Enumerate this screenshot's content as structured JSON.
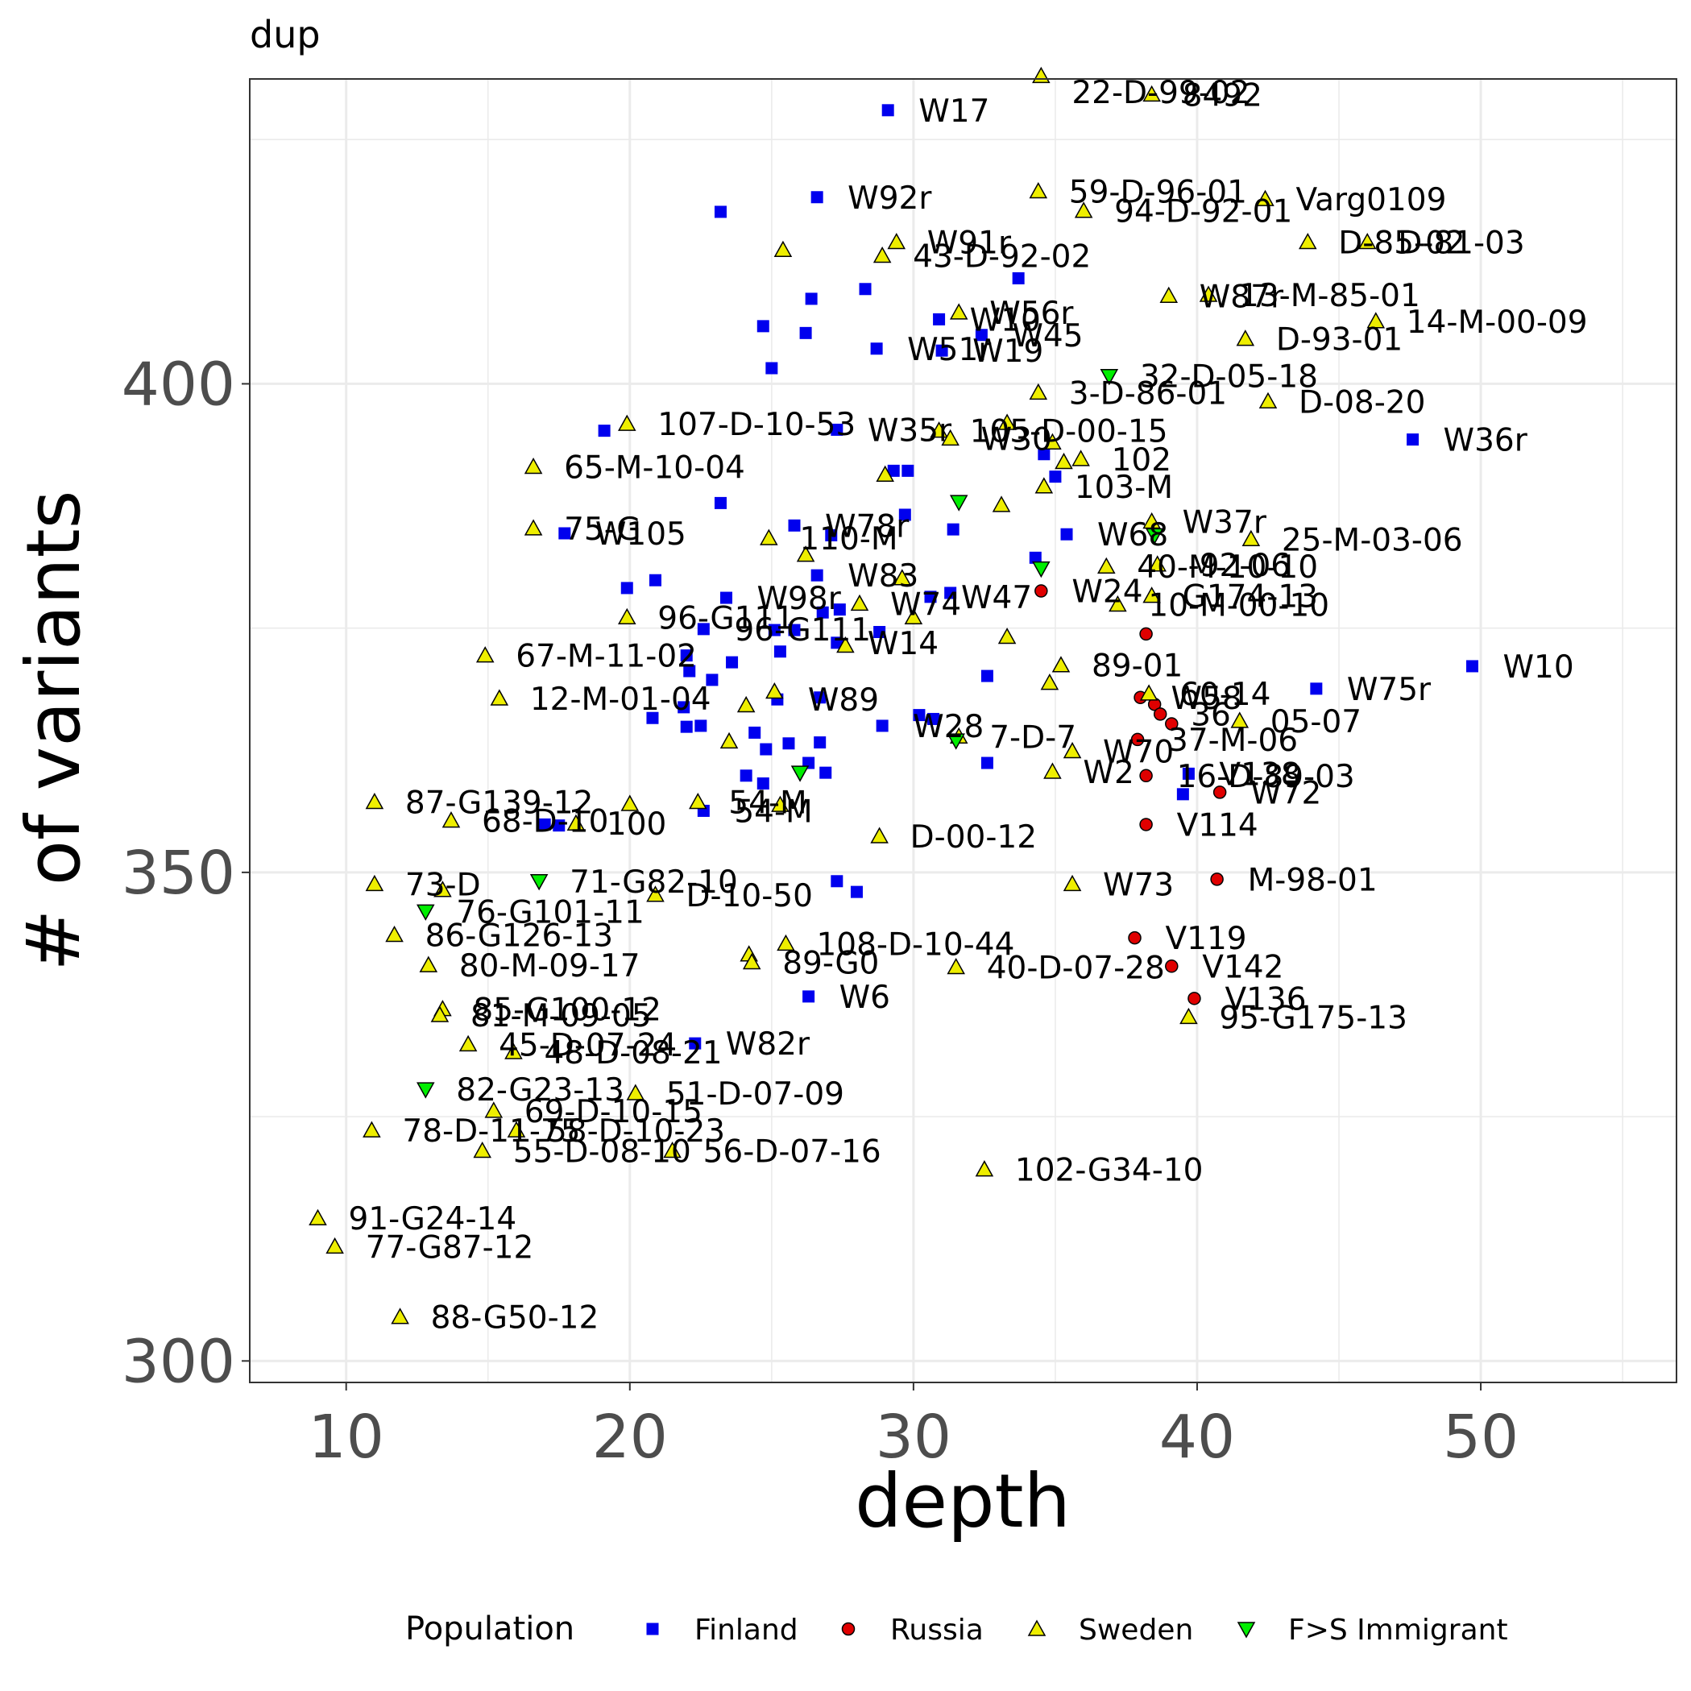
{
  "chart_data": {
    "type": "scatter",
    "title": "dup",
    "xlabel": "depth",
    "ylabel": "# of variants",
    "xlim": [
      6.6,
      56.9
    ],
    "ylim": [
      297.8,
      431.2
    ],
    "x_ticks": [
      10,
      20,
      30,
      40,
      50
    ],
    "y_ticks": [
      300,
      350,
      400
    ],
    "x_tick_labels": [
      "10",
      "20",
      "30",
      "40",
      "50"
    ],
    "y_tick_labels": [
      "300",
      "350",
      "400"
    ],
    "grid": true,
    "legend_position": "bottom",
    "legend_title": "Population",
    "colors": {
      "Finland": "#0000ee",
      "Russia": "#e00000",
      "Sweden": "#eeee00",
      "F>S Immigrant": "#00ee00"
    },
    "series": [
      {
        "name": "Finland",
        "marker": "square",
        "points": [
          {
            "x": 29.1,
            "y": 428.0,
            "label": "W17"
          },
          {
            "x": 26.6,
            "y": 419.1,
            "label": "W92r"
          },
          {
            "x": 23.2,
            "y": 417.6,
            "label": ""
          },
          {
            "x": 33.7,
            "y": 410.8,
            "label": ""
          },
          {
            "x": 28.3,
            "y": 409.7,
            "label": ""
          },
          {
            "x": 26.4,
            "y": 408.7,
            "label": ""
          },
          {
            "x": 30.9,
            "y": 406.6,
            "label": "W10"
          },
          {
            "x": 24.7,
            "y": 405.9,
            "label": ""
          },
          {
            "x": 26.2,
            "y": 405.2,
            "label": ""
          },
          {
            "x": 32.4,
            "y": 405.0,
            "label": "W45"
          },
          {
            "x": 28.7,
            "y": 403.6,
            "label": "W51r"
          },
          {
            "x": 31.0,
            "y": 403.4,
            "label": "W19"
          },
          {
            "x": 25.0,
            "y": 401.6,
            "label": ""
          },
          {
            "x": 19.1,
            "y": 395.2,
            "label": ""
          },
          {
            "x": 27.3,
            "y": 395.3,
            "label": "W35r"
          },
          {
            "x": 47.6,
            "y": 394.3,
            "label": "W36r"
          },
          {
            "x": 34.6,
            "y": 392.8,
            "label": ""
          },
          {
            "x": 35.0,
            "y": 390.5,
            "label": ""
          },
          {
            "x": 29.3,
            "y": 391.1,
            "label": ""
          },
          {
            "x": 29.8,
            "y": 391.1,
            "label": ""
          },
          {
            "x": 23.2,
            "y": 387.8,
            "label": ""
          },
          {
            "x": 17.7,
            "y": 384.7,
            "label": "W105"
          },
          {
            "x": 25.8,
            "y": 385.5,
            "label": "W78r"
          },
          {
            "x": 27.1,
            "y": 384.5,
            "label": ""
          },
          {
            "x": 29.7,
            "y": 386.6,
            "label": ""
          },
          {
            "x": 31.4,
            "y": 385.1,
            "label": ""
          },
          {
            "x": 35.4,
            "y": 384.6,
            "label": "W68"
          },
          {
            "x": 20.9,
            "y": 379.9,
            "label": ""
          },
          {
            "x": 19.9,
            "y": 379.1,
            "label": ""
          },
          {
            "x": 23.4,
            "y": 378.1,
            "label": "W98r"
          },
          {
            "x": 26.6,
            "y": 380.4,
            "label": "W83"
          },
          {
            "x": 30.6,
            "y": 378.2,
            "label": "W47"
          },
          {
            "x": 31.3,
            "y": 378.6,
            "label": ""
          },
          {
            "x": 34.3,
            "y": 382.2,
            "label": ""
          },
          {
            "x": 25.1,
            "y": 374.8,
            "label": ""
          },
          {
            "x": 25.8,
            "y": 374.8,
            "label": ""
          },
          {
            "x": 26.8,
            "y": 376.6,
            "label": ""
          },
          {
            "x": 27.4,
            "y": 376.9,
            "label": ""
          },
          {
            "x": 22.6,
            "y": 374.9,
            "label": "96-G111"
          },
          {
            "x": 22.0,
            "y": 372.2,
            "label": ""
          },
          {
            "x": 23.6,
            "y": 371.5,
            "label": ""
          },
          {
            "x": 25.3,
            "y": 372.6,
            "label": ""
          },
          {
            "x": 27.3,
            "y": 373.5,
            "label": "W14"
          },
          {
            "x": 28.8,
            "y": 374.6,
            "label": ""
          },
          {
            "x": 32.6,
            "y": 370.1,
            "label": ""
          },
          {
            "x": 22.1,
            "y": 370.6,
            "label": ""
          },
          {
            "x": 22.9,
            "y": 369.7,
            "label": ""
          },
          {
            "x": 25.2,
            "y": 367.7,
            "label": "W89"
          },
          {
            "x": 26.7,
            "y": 367.9,
            "label": ""
          },
          {
            "x": 44.2,
            "y": 368.8,
            "label": "W75r"
          },
          {
            "x": 49.7,
            "y": 371.1,
            "label": "W10"
          },
          {
            "x": 21.9,
            "y": 366.9,
            "label": ""
          },
          {
            "x": 20.8,
            "y": 365.8,
            "label": ""
          },
          {
            "x": 22.0,
            "y": 364.9,
            "label": ""
          },
          {
            "x": 22.5,
            "y": 365.0,
            "label": ""
          },
          {
            "x": 24.4,
            "y": 364.3,
            "label": ""
          },
          {
            "x": 24.8,
            "y": 362.6,
            "label": ""
          },
          {
            "x": 25.6,
            "y": 363.2,
            "label": ""
          },
          {
            "x": 26.7,
            "y": 363.3,
            "label": ""
          },
          {
            "x": 28.9,
            "y": 365.0,
            "label": "W28"
          },
          {
            "x": 30.2,
            "y": 366.1,
            "label": ""
          },
          {
            "x": 30.7,
            "y": 365.7,
            "label": ""
          },
          {
            "x": 24.1,
            "y": 359.9,
            "label": ""
          },
          {
            "x": 24.7,
            "y": 359.1,
            "label": ""
          },
          {
            "x": 26.3,
            "y": 361.2,
            "label": ""
          },
          {
            "x": 26.9,
            "y": 360.2,
            "label": ""
          },
          {
            "x": 32.6,
            "y": 361.2,
            "label": ""
          },
          {
            "x": 39.7,
            "y": 360.1,
            "label": "V138"
          },
          {
            "x": 39.5,
            "y": 358.0,
            "label": ""
          },
          {
            "x": 22.6,
            "y": 356.3,
            "label": "54-M"
          },
          {
            "x": 17.0,
            "y": 354.9,
            "label": ""
          },
          {
            "x": 17.5,
            "y": 354.8,
            "label": ""
          },
          {
            "x": 27.3,
            "y": 349.1,
            "label": ""
          },
          {
            "x": 28.0,
            "y": 348.0,
            "label": ""
          },
          {
            "x": 26.3,
            "y": 337.3,
            "label": "W6"
          },
          {
            "x": 22.3,
            "y": 332.5,
            "label": "W82r"
          }
        ]
      },
      {
        "name": "Russia",
        "marker": "circle",
        "points": [
          {
            "x": 34.5,
            "y": 378.8,
            "label": "W24"
          },
          {
            "x": 38.2,
            "y": 374.4,
            "label": ""
          },
          {
            "x": 38.5,
            "y": 367.2,
            "label": ""
          },
          {
            "x": 38.7,
            "y": 366.2,
            "label": "36"
          },
          {
            "x": 39.1,
            "y": 365.2,
            "label": ""
          },
          {
            "x": 38.0,
            "y": 367.9,
            "label": "W58"
          },
          {
            "x": 37.9,
            "y": 363.6,
            "label": "37-M-06"
          },
          {
            "x": 38.2,
            "y": 359.9,
            "label": "16-D-89-03"
          },
          {
            "x": 40.8,
            "y": 358.2,
            "label": "W72"
          },
          {
            "x": 38.2,
            "y": 354.9,
            "label": "V114"
          },
          {
            "x": 40.7,
            "y": 349.3,
            "label": "M-98-01"
          },
          {
            "x": 37.8,
            "y": 343.3,
            "label": "V119"
          },
          {
            "x": 39.1,
            "y": 340.4,
            "label": "V142"
          },
          {
            "x": 39.9,
            "y": 337.1,
            "label": "V136"
          }
        ]
      },
      {
        "name": "Sweden",
        "marker": "triangle-up",
        "points": [
          {
            "x": 34.5,
            "y": 431.5,
            "label": "22-D-99-02"
          },
          {
            "x": 38.4,
            "y": 429.6,
            "label": "8492"
          },
          {
            "x": 34.4,
            "y": 419.7,
            "label": "59-D-96-01"
          },
          {
            "x": 42.4,
            "y": 418.9,
            "label": "Varg0109"
          },
          {
            "x": 36.0,
            "y": 417.7,
            "label": "94-D-92-01"
          },
          {
            "x": 29.4,
            "y": 414.5,
            "label": "W91r"
          },
          {
            "x": 43.9,
            "y": 414.5,
            "label": "D-85-02"
          },
          {
            "x": 46.0,
            "y": 414.5,
            "label": "D-81-03"
          },
          {
            "x": 25.4,
            "y": 413.7,
            "label": ""
          },
          {
            "x": 28.9,
            "y": 413.1,
            "label": "43-D-92-02"
          },
          {
            "x": 39.0,
            "y": 409.0,
            "label": "W87r"
          },
          {
            "x": 40.4,
            "y": 409.1,
            "label": "13-M-85-01"
          },
          {
            "x": 31.6,
            "y": 407.3,
            "label": "W56r"
          },
          {
            "x": 46.3,
            "y": 406.4,
            "label": "14-M-00-09"
          },
          {
            "x": 41.7,
            "y": 404.6,
            "label": "D-93-01"
          },
          {
            "x": 34.4,
            "y": 399.1,
            "label": "3-D-86-01"
          },
          {
            "x": 42.5,
            "y": 398.2,
            "label": "D-08-20"
          },
          {
            "x": 19.9,
            "y": 395.9,
            "label": "107-D-10-53"
          },
          {
            "x": 30.9,
            "y": 395.2,
            "label": "105-D-00-15"
          },
          {
            "x": 31.3,
            "y": 394.4,
            "label": "W30"
          },
          {
            "x": 33.3,
            "y": 396.0,
            "label": ""
          },
          {
            "x": 34.9,
            "y": 394.0,
            "label": ""
          },
          {
            "x": 16.6,
            "y": 391.5,
            "label": "65-M-10-04"
          },
          {
            "x": 35.3,
            "y": 392.0,
            "label": ""
          },
          {
            "x": 35.9,
            "y": 392.3,
            "label": "102"
          },
          {
            "x": 34.6,
            "y": 389.5,
            "label": "103-M"
          },
          {
            "x": 29.0,
            "y": 390.7,
            "label": ""
          },
          {
            "x": 33.1,
            "y": 387.6,
            "label": ""
          },
          {
            "x": 16.6,
            "y": 385.2,
            "label": "75-G"
          },
          {
            "x": 24.9,
            "y": 384.2,
            "label": "110-M"
          },
          {
            "x": 38.4,
            "y": 385.9,
            "label": "W37r"
          },
          {
            "x": 41.9,
            "y": 384.1,
            "label": "25-M-03-06"
          },
          {
            "x": 26.2,
            "y": 382.5,
            "label": ""
          },
          {
            "x": 29.6,
            "y": 380.1,
            "label": ""
          },
          {
            "x": 38.6,
            "y": 381.5,
            "label": "-92-06"
          },
          {
            "x": 36.8,
            "y": 381.3,
            "label": "40-M-10-10"
          },
          {
            "x": 28.1,
            "y": 377.5,
            "label": "W74"
          },
          {
            "x": 38.4,
            "y": 378.3,
            "label": "G174-13"
          },
          {
            "x": 37.2,
            "y": 377.4,
            "label": "10-M-00-10"
          },
          {
            "x": 19.9,
            "y": 376.1,
            "label": "96-G111"
          },
          {
            "x": 30.0,
            "y": 376.1,
            "label": ""
          },
          {
            "x": 33.3,
            "y": 374.1,
            "label": ""
          },
          {
            "x": 14.9,
            "y": 372.2,
            "label": "67-M-11-02"
          },
          {
            "x": 35.2,
            "y": 371.2,
            "label": "89-01"
          },
          {
            "x": 27.6,
            "y": 373.2,
            "label": ""
          },
          {
            "x": 25.1,
            "y": 368.5,
            "label": ""
          },
          {
            "x": 15.4,
            "y": 367.8,
            "label": "12-M-01-04"
          },
          {
            "x": 24.1,
            "y": 367.1,
            "label": ""
          },
          {
            "x": 34.8,
            "y": 369.4,
            "label": ""
          },
          {
            "x": 38.3,
            "y": 368.3,
            "label": "60-14"
          },
          {
            "x": 41.5,
            "y": 365.5,
            "label": "05-07"
          },
          {
            "x": 23.5,
            "y": 363.4,
            "label": ""
          },
          {
            "x": 31.6,
            "y": 363.9,
            "label": "7-D-7"
          },
          {
            "x": 35.6,
            "y": 362.4,
            "label": "W70"
          },
          {
            "x": 34.9,
            "y": 360.3,
            "label": "W2"
          },
          {
            "x": 11.0,
            "y": 357.2,
            "label": "87-G139-12"
          },
          {
            "x": 22.4,
            "y": 357.2,
            "label": "54-M"
          },
          {
            "x": 20.0,
            "y": 357.0,
            "label": ""
          },
          {
            "x": 25.3,
            "y": 356.9,
            "label": ""
          },
          {
            "x": 13.7,
            "y": 355.3,
            "label": "68-D-10"
          },
          {
            "x": 18.1,
            "y": 355.0,
            "label": "100"
          },
          {
            "x": 28.8,
            "y": 353.7,
            "label": "D-00-12"
          },
          {
            "x": 11.0,
            "y": 348.8,
            "label": "73-D"
          },
          {
            "x": 35.6,
            "y": 348.8,
            "label": "W73"
          },
          {
            "x": 13.4,
            "y": 348.2,
            "label": ""
          },
          {
            "x": 20.9,
            "y": 347.7,
            "label": "D-10-50"
          },
          {
            "x": 11.7,
            "y": 343.6,
            "label": "86-G126-13"
          },
          {
            "x": 25.5,
            "y": 342.7,
            "label": "108-D-10-44"
          },
          {
            "x": 24.2,
            "y": 341.6,
            "label": ""
          },
          {
            "x": 24.3,
            "y": 340.8,
            "label": "89-G0"
          },
          {
            "x": 31.5,
            "y": 340.3,
            "label": "40-D-07-28"
          },
          {
            "x": 12.9,
            "y": 340.5,
            "label": "80-M-09-17"
          },
          {
            "x": 13.4,
            "y": 336.0,
            "label": "85-G100-12"
          },
          {
            "x": 13.3,
            "y": 335.4,
            "label": "81-M-09-05"
          },
          {
            "x": 39.7,
            "y": 335.2,
            "label": "95-G175-13"
          },
          {
            "x": 14.3,
            "y": 332.4,
            "label": "45-D-07-24"
          },
          {
            "x": 15.9,
            "y": 331.6,
            "label": "48-D-08-21"
          },
          {
            "x": 20.2,
            "y": 327.4,
            "label": "51-D-07-09"
          },
          {
            "x": 15.2,
            "y": 325.6,
            "label": "69-D-10-15"
          },
          {
            "x": 10.9,
            "y": 323.6,
            "label": "78-D-11-75"
          },
          {
            "x": 16.0,
            "y": 323.6,
            "label": "58-D-10-23"
          },
          {
            "x": 14.8,
            "y": 321.5,
            "label": "55-D-08-10"
          },
          {
            "x": 21.5,
            "y": 321.5,
            "label": "56-D-07-16"
          },
          {
            "x": 32.5,
            "y": 319.6,
            "label": "102-G34-10"
          },
          {
            "x": 9.0,
            "y": 314.6,
            "label": "91-G24-14"
          },
          {
            "x": 9.6,
            "y": 311.7,
            "label": "77-G87-12"
          },
          {
            "x": 11.9,
            "y": 304.5,
            "label": "88-G50-12"
          }
        ]
      },
      {
        "name": "F>S Immigrant",
        "marker": "triangle-down",
        "points": [
          {
            "x": 36.9,
            "y": 400.8,
            "label": "32-D-05-18"
          },
          {
            "x": 31.6,
            "y": 387.9,
            "label": ""
          },
          {
            "x": 38.5,
            "y": 384.5,
            "label": ""
          },
          {
            "x": 34.5,
            "y": 381.1,
            "label": ""
          },
          {
            "x": 31.5,
            "y": 363.5,
            "label": ""
          },
          {
            "x": 26.0,
            "y": 360.2,
            "label": ""
          },
          {
            "x": 16.8,
            "y": 349.1,
            "label": "71-G82-10"
          },
          {
            "x": 12.8,
            "y": 346.0,
            "label": "76-G101-11"
          },
          {
            "x": 12.8,
            "y": 327.8,
            "label": "82-G23-13"
          }
        ]
      }
    ]
  }
}
